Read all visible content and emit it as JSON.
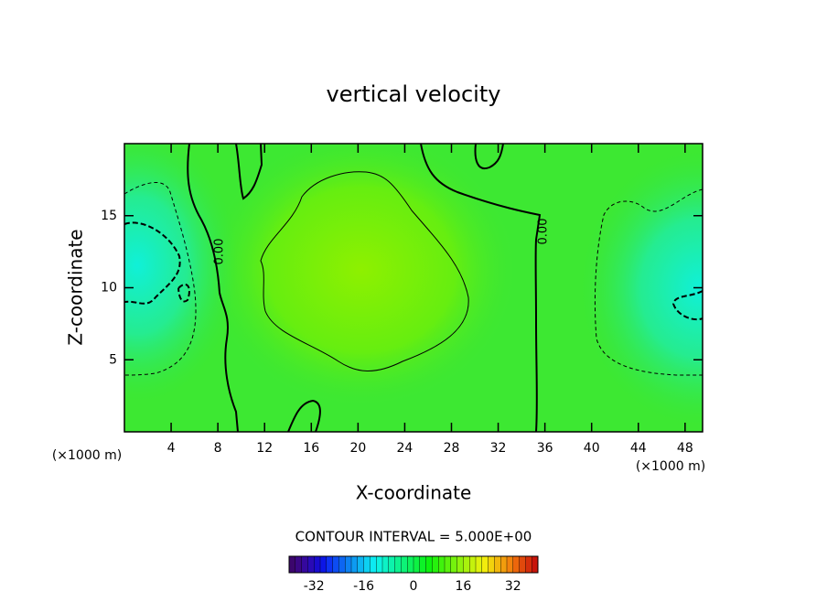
{
  "chart_data": {
    "type": "contour",
    "title": "vertical velocity",
    "x_label": "X-coordinate",
    "y_label": "Z-coordinate",
    "x_unit": "(×1000 m)",
    "xlim": [
      0,
      49.5
    ],
    "ylim": [
      0,
      20
    ],
    "xticks": [
      4,
      8,
      12,
      16,
      20,
      24,
      28,
      32,
      36,
      40,
      44,
      48
    ],
    "yticks": [
      5,
      10,
      15
    ],
    "contour_labels": [
      "0.00",
      "0.00"
    ],
    "contour_interval_text": "CONTOUR INTERVAL = 5.000E+00",
    "colorbar_lim": [
      -40,
      40
    ],
    "colorbar_ticks": [
      -32,
      -16,
      0,
      16,
      32
    ]
  }
}
